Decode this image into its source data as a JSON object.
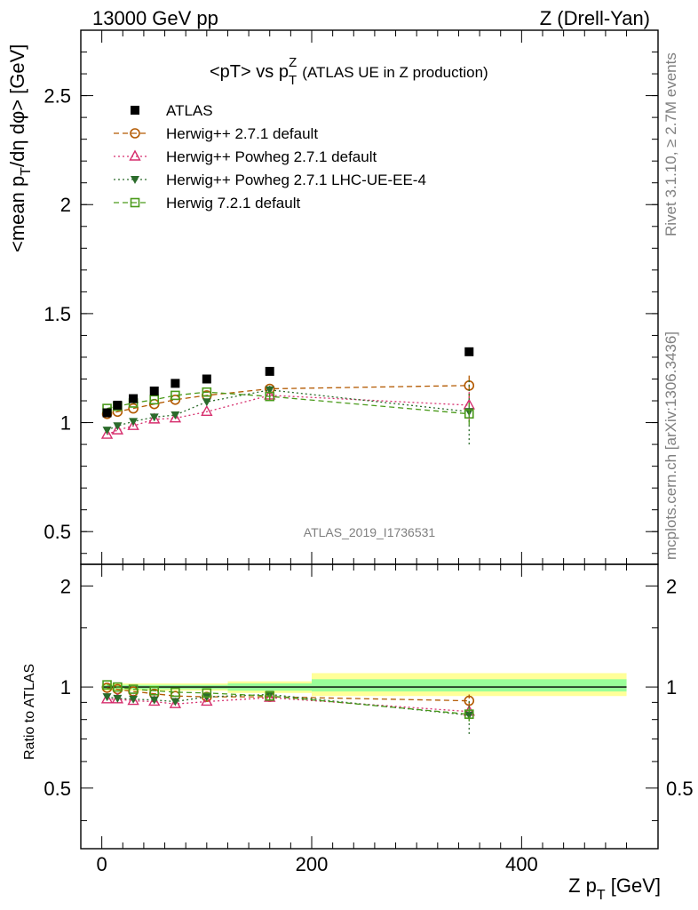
{
  "header": {
    "left": "13000 GeV pp",
    "right": "Z (Drell-Yan)"
  },
  "side_labels": {
    "rivet": "Rivet 3.1.10, ≥ 2.7M events",
    "mcplots": "mcplots.cern.ch [arXiv:1306.3436]"
  },
  "watermark": "ATLAS_2019_I1736531",
  "chart_data": [
    {
      "type": "scatter",
      "panel": "main",
      "title": "<pT> vs p_T^Z (ATLAS UE in Z production)",
      "title_main": "<pT> vs p",
      "title_sup": "Z",
      "title_sub": "T",
      "title_rest": "(ATLAS UE in Z production)",
      "ylabel": "<mean p_T/dη dφ> [GeV]",
      "ylabel_parts": [
        "<mean p",
        "T",
        "/dη dφ> [GeV]"
      ],
      "xlim": [
        -20,
        530
      ],
      "ylim": [
        0.35,
        2.8
      ],
      "yticks": [
        0.5,
        1,
        1.5,
        2,
        2.5
      ],
      "ytick_labels": [
        "0.5",
        "1",
        "1.5",
        "2",
        "2.5"
      ],
      "legend": {
        "position": "top-left",
        "entries": [
          "ATLAS",
          "Herwig++ 2.7.1 default",
          "Herwig++ Powheg 2.7.1 default",
          "Herwig++ Powheg 2.7.1 LHC-UE-EE-4",
          "Herwig 7.2.1 default"
        ]
      },
      "series": [
        {
          "name": "ATLAS",
          "color": "#000000",
          "marker": "filled-square",
          "x": [
            5,
            15,
            30,
            50,
            70,
            100,
            160,
            350
          ],
          "y": [
            1.045,
            1.08,
            1.11,
            1.145,
            1.18,
            1.2,
            1.235,
            1.325
          ]
        },
        {
          "name": "Herwig++ 2.7.1 default",
          "color": "#b35900",
          "marker": "open-circle",
          "dash": "6,4",
          "x": [
            5,
            15,
            30,
            50,
            70,
            100,
            160,
            350
          ],
          "y": [
            1.04,
            1.05,
            1.065,
            1.085,
            1.105,
            1.125,
            1.155,
            1.17
          ],
          "yerr": [
            0,
            0,
            0,
            0,
            0,
            0,
            0.02,
            0.06
          ]
        },
        {
          "name": "Herwig++ Powheg 2.7.1 default",
          "color": "#d62e6d",
          "marker": "open-triangle",
          "dash": "2,3",
          "x": [
            5,
            15,
            30,
            50,
            70,
            100,
            160,
            350
          ],
          "y": [
            0.945,
            0.965,
            0.985,
            1.015,
            1.02,
            1.05,
            1.125,
            1.08
          ],
          "yerr": [
            0,
            0,
            0,
            0,
            0,
            0,
            0.02,
            0.07
          ]
        },
        {
          "name": "Herwig++ Powheg 2.7.1 LHC-UE-EE-4",
          "color": "#2b6b2b",
          "marker": "filled-triangle-down",
          "dash": "2,3",
          "x": [
            5,
            15,
            30,
            50,
            70,
            100,
            160,
            350
          ],
          "y": [
            0.965,
            0.985,
            1.005,
            1.025,
            1.035,
            1.095,
            1.15,
            1.05
          ],
          "yerr": [
            0,
            0,
            0,
            0,
            0,
            0,
            0.03,
            0.15
          ]
        },
        {
          "name": "Herwig 7.2.1 default",
          "color": "#4a9a1a",
          "marker": "open-square",
          "dash": "6,4",
          "x": [
            5,
            15,
            30,
            50,
            70,
            100,
            160,
            350
          ],
          "y": [
            1.065,
            1.075,
            1.09,
            1.105,
            1.125,
            1.14,
            1.12,
            1.04
          ],
          "yerr": [
            0,
            0,
            0,
            0,
            0,
            0,
            0.02,
            0.05
          ]
        }
      ]
    },
    {
      "type": "scatter",
      "panel": "ratio",
      "ylabel": "Ratio to ATLAS",
      "xlabel": "Z p_T [GeV]",
      "xlabel_parts": [
        "Z p",
        "T",
        " [GeV]"
      ],
      "xlim": [
        -20,
        530
      ],
      "ylim": [
        0.33,
        2.32
      ],
      "yticks": [
        0.5,
        1,
        2
      ],
      "ytick_labels": [
        "0.5",
        "1",
        "2"
      ],
      "xticks": [
        0,
        200,
        400
      ],
      "xtick_labels": [
        "0",
        "200",
        "400"
      ],
      "bands": [
        {
          "x0": 0,
          "x1": 120,
          "y_inner": [
            0.985,
            1.015
          ],
          "y_outer": [
            0.975,
            1.025
          ]
        },
        {
          "x0": 120,
          "x1": 200,
          "y_inner": [
            0.975,
            1.025
          ],
          "y_outer": [
            0.96,
            1.04
          ]
        },
        {
          "x0": 200,
          "x1": 500,
          "y_inner": [
            0.97,
            1.055
          ],
          "y_outer": [
            0.94,
            1.1
          ]
        }
      ],
      "series": [
        {
          "name": "Herwig++ 2.7.1 default",
          "color": "#b35900",
          "marker": "open-circle",
          "dash": "6,4",
          "x": [
            5,
            15,
            30,
            50,
            70,
            100,
            160,
            350
          ],
          "y": [
            0.995,
            0.985,
            0.97,
            0.955,
            0.94,
            0.935,
            0.935,
            0.91
          ],
          "yerr": [
            0,
            0,
            0,
            0,
            0,
            0,
            0.02,
            0.04
          ]
        },
        {
          "name": "Herwig++ Powheg 2.7.1 default",
          "color": "#d62e6d",
          "marker": "open-triangle",
          "dash": "2,3",
          "x": [
            5,
            15,
            30,
            50,
            70,
            100,
            160,
            350
          ],
          "y": [
            0.92,
            0.92,
            0.91,
            0.905,
            0.89,
            0.905,
            0.93,
            0.845
          ],
          "yerr": [
            0,
            0,
            0,
            0,
            0,
            0,
            0.02,
            0.05
          ]
        },
        {
          "name": "Herwig++ Powheg 2.7.1 LHC-UE-EE-4",
          "color": "#2b6b2b",
          "marker": "filled-triangle-down",
          "dash": "2,3",
          "x": [
            5,
            15,
            30,
            50,
            70,
            100,
            160,
            350
          ],
          "y": [
            0.935,
            0.925,
            0.92,
            0.915,
            0.905,
            0.935,
            0.95,
            0.825
          ],
          "yerr": [
            0,
            0,
            0,
            0,
            0,
            0,
            0.02,
            0.1
          ]
        },
        {
          "name": "Herwig 7.2.1 default",
          "color": "#4a9a1a",
          "marker": "open-square",
          "dash": "6,4",
          "x": [
            5,
            15,
            30,
            50,
            70,
            100,
            160,
            350
          ],
          "y": [
            1.015,
            1.0,
            0.985,
            0.975,
            0.965,
            0.96,
            0.94,
            0.83
          ],
          "yerr": [
            0,
            0,
            0,
            0,
            0,
            0,
            0.02,
            0.04
          ]
        }
      ]
    }
  ]
}
